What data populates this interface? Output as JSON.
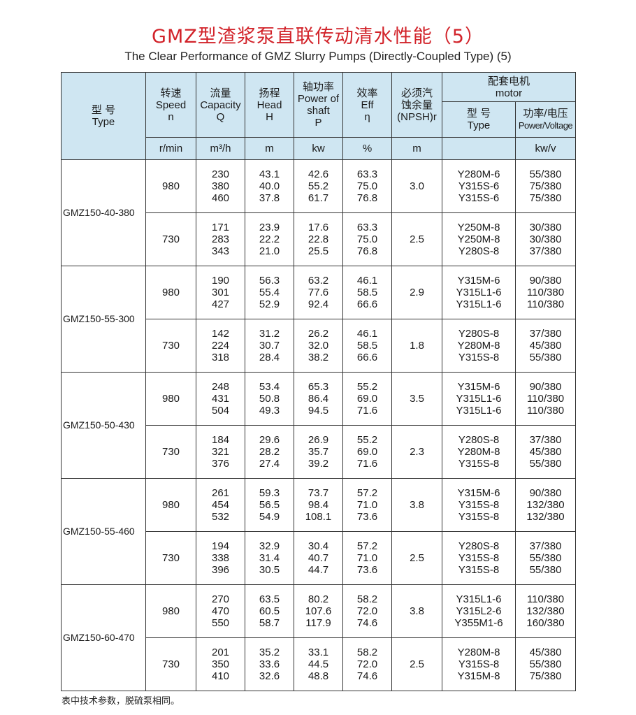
{
  "title": "GMZ型渣浆泵直联传动清水性能（5）",
  "subtitle": "The Clear Performance of GMZ Slurry Pumps (Directly-Coupled Type) (5)",
  "header": {
    "type": [
      "型 号",
      "Type"
    ],
    "speed": [
      "转速",
      "Speed",
      "n"
    ],
    "capacity": [
      "流量",
      "Capacity",
      "Q"
    ],
    "head": [
      "扬程",
      "Head",
      "H"
    ],
    "power": [
      "轴功率",
      "Power of",
      "shaft",
      "P"
    ],
    "eff": [
      "效率",
      "Eff",
      "η"
    ],
    "npsh": [
      "必须汽",
      "蚀余量",
      "(NPSH)r"
    ],
    "motor": [
      "配套电机",
      "motor"
    ],
    "motor_type": [
      "型 号",
      "Type"
    ],
    "motor_power": [
      "功率/电压",
      "Power/Voltage"
    ]
  },
  "units": {
    "speed": "r/min",
    "capacity": "m³/h",
    "head": "m",
    "power": "kw",
    "eff": "%",
    "npsh": "m",
    "motor_type": "",
    "motor_power": "kw/v"
  },
  "models": [
    {
      "type": "GMZ150-40-380",
      "groups": [
        {
          "speed": "980",
          "q": [
            "230",
            "380",
            "460"
          ],
          "h": [
            "43.1",
            "40.0",
            "37.8"
          ],
          "p": [
            "42.6",
            "55.2",
            "61.7"
          ],
          "eff": [
            "63.3",
            "75.0",
            "76.8"
          ],
          "npsh": "3.0",
          "motor": [
            "Y280M-6",
            "Y315S-6",
            "Y315S-6"
          ],
          "pv": [
            "55/380",
            "75/380",
            "75/380"
          ]
        },
        {
          "speed": "730",
          "q": [
            "171",
            "283",
            "343"
          ],
          "h": [
            "23.9",
            "22.2",
            "21.0"
          ],
          "p": [
            "17.6",
            "22.8",
            "25.5"
          ],
          "eff": [
            "63.3",
            "75.0",
            "76.8"
          ],
          "npsh": "2.5",
          "motor": [
            "Y250M-8",
            "Y250M-8",
            "Y280S-8"
          ],
          "pv": [
            "30/380",
            "30/380",
            "37/380"
          ]
        }
      ]
    },
    {
      "type": "GMZ150-55-300",
      "groups": [
        {
          "speed": "980",
          "q": [
            "190",
            "301",
            "427"
          ],
          "h": [
            "56.3",
            "55.4",
            "52.9"
          ],
          "p": [
            "63.2",
            "77.6",
            "92.4"
          ],
          "eff": [
            "46.1",
            "58.5",
            "66.6"
          ],
          "npsh": "2.9",
          "motor": [
            "Y315M-6",
            "Y315L1-6",
            "Y315L1-6"
          ],
          "pv": [
            "90/380",
            "110/380",
            "110/380"
          ]
        },
        {
          "speed": "730",
          "q": [
            "142",
            "224",
            "318"
          ],
          "h": [
            "31.2",
            "30.7",
            "28.4"
          ],
          "p": [
            "26.2",
            "32.0",
            "38.2"
          ],
          "eff": [
            "46.1",
            "58.5",
            "66.6"
          ],
          "npsh": "1.8",
          "motor": [
            "Y280S-8",
            "Y280M-8",
            "Y315S-8"
          ],
          "pv": [
            "37/380",
            "45/380",
            "55/380"
          ]
        }
      ]
    },
    {
      "type": "GMZ150-50-430",
      "groups": [
        {
          "speed": "980",
          "q": [
            "248",
            "431",
            "504"
          ],
          "h": [
            "53.4",
            "50.8",
            "49.3"
          ],
          "p": [
            "65.3",
            "86.4",
            "94.5"
          ],
          "eff": [
            "55.2",
            "69.0",
            "71.6"
          ],
          "npsh": "3.5",
          "motor": [
            "Y315M-6",
            "Y315L1-6",
            "Y315L1-6"
          ],
          "pv": [
            "90/380",
            "110/380",
            "110/380"
          ]
        },
        {
          "speed": "730",
          "q": [
            "184",
            "321",
            "376"
          ],
          "h": [
            "29.6",
            "28.2",
            "27.4"
          ],
          "p": [
            "26.9",
            "35.7",
            "39.2"
          ],
          "eff": [
            "55.2",
            "69.0",
            "71.6"
          ],
          "npsh": "2.3",
          "motor": [
            "Y280S-8",
            "Y280M-8",
            "Y315S-8"
          ],
          "pv": [
            "37/380",
            "45/380",
            "55/380"
          ]
        }
      ]
    },
    {
      "type": "GMZ150-55-460",
      "groups": [
        {
          "speed": "980",
          "q": [
            "261",
            "454",
            "532"
          ],
          "h": [
            "59.3",
            "56.5",
            "54.9"
          ],
          "p": [
            "73.7",
            "98.4",
            "108.1"
          ],
          "eff": [
            "57.2",
            "71.0",
            "73.6"
          ],
          "npsh": "3.8",
          "motor": [
            "Y315M-6",
            "Y315S-8",
            "Y315S-8"
          ],
          "pv": [
            "90/380",
            "132/380",
            "132/380"
          ]
        },
        {
          "speed": "730",
          "q": [
            "194",
            "338",
            "396"
          ],
          "h": [
            "32.9",
            "31.4",
            "30.5"
          ],
          "p": [
            "30.4",
            "40.7",
            "44.7"
          ],
          "eff": [
            "57.2",
            "71.0",
            "73.6"
          ],
          "npsh": "2.5",
          "motor": [
            "Y280S-8",
            "Y315S-8",
            "Y315S-8"
          ],
          "pv": [
            "37/380",
            "55/380",
            "55/380"
          ]
        }
      ]
    },
    {
      "type": "GMZ150-60-470",
      "groups": [
        {
          "speed": "980",
          "q": [
            "270",
            "470",
            "550"
          ],
          "h": [
            "63.5",
            "60.5",
            "58.7"
          ],
          "p": [
            "80.2",
            "107.6",
            "117.9"
          ],
          "eff": [
            "58.2",
            "72.0",
            "74.6"
          ],
          "npsh": "3.8",
          "motor": [
            "Y315L1-6",
            "Y315L2-6",
            "Y355M1-6"
          ],
          "pv": [
            "110/380",
            "132/380",
            "160/380"
          ]
        },
        {
          "speed": "730",
          "q": [
            "201",
            "350",
            "410"
          ],
          "h": [
            "35.2",
            "33.6",
            "32.6"
          ],
          "p": [
            "33.1",
            "44.5",
            "48.8"
          ],
          "eff": [
            "58.2",
            "72.0",
            "74.6"
          ],
          "npsh": "2.5",
          "motor": [
            "Y280M-8",
            "Y315S-8",
            "Y315M-8"
          ],
          "pv": [
            "45/380",
            "55/380",
            "75/380"
          ]
        }
      ]
    }
  ],
  "footnote": "表中技术参数，脱硫泵相同。",
  "colors": {
    "title": "#d2232a",
    "header_bg": "#cfe6f2"
  }
}
